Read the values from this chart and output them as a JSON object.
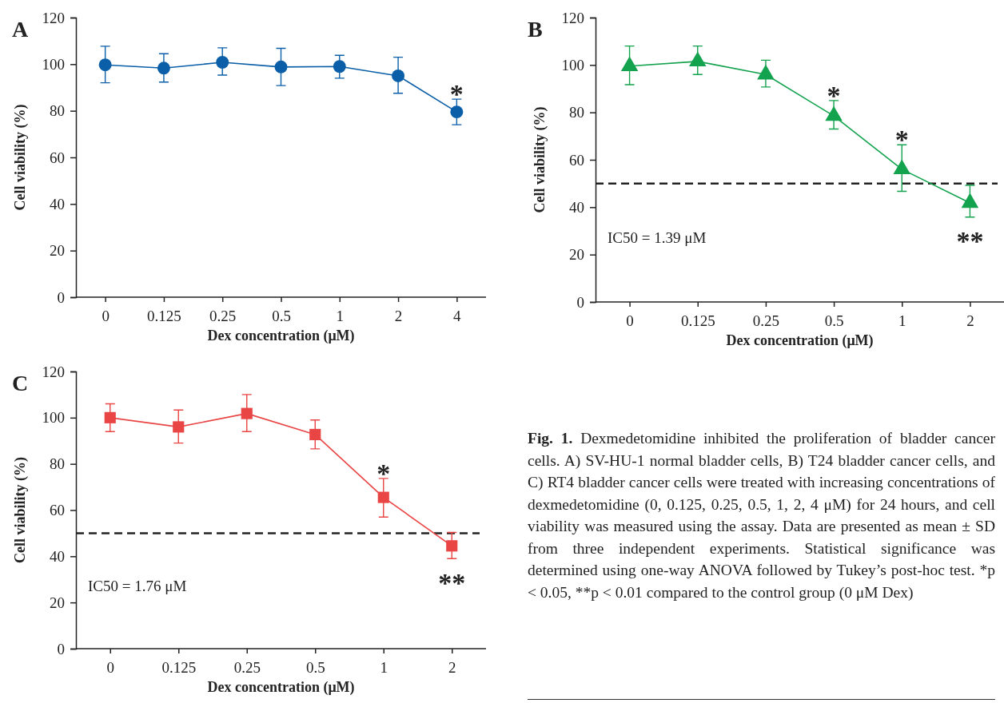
{
  "chart_data": [
    {
      "type": "line",
      "title": "A",
      "xlabel": "Dex concentration (μM)",
      "ylabel": "Cell viability (%)",
      "categories": [
        "0",
        "0.125",
        "0.25",
        "0.5",
        "1",
        "2",
        "4"
      ],
      "marker": "circle",
      "ylim": [
        0,
        120
      ],
      "yticks": [
        0,
        20,
        40,
        60,
        80,
        100,
        120
      ],
      "series": [
        {
          "color": "#0a5fa8",
          "values": [
            99.7,
            98.3,
            100.8,
            98.8,
            99,
            95,
            79.5
          ],
          "errors": [
            [
              92,
              107.7
            ],
            [
              92.3,
              104.5
            ],
            [
              95.3,
              107
            ],
            [
              90.8,
              106.8
            ],
            [
              94,
              103.8
            ],
            [
              87.5,
              103
            ],
            [
              74,
              85
            ]
          ]
        }
      ],
      "annotations": [
        {
          "text": "*",
          "x": "4",
          "y": 79.5
        }
      ]
    },
    {
      "type": "line",
      "title": "B",
      "xlabel": "Dex concentration (μM)",
      "ylabel": "Cell viability (%)",
      "categories": [
        "0",
        "0.125",
        "0.25",
        "0.5",
        "1",
        "2"
      ],
      "marker": "triangle",
      "ylim": [
        0,
        120
      ],
      "yticks": [
        0,
        20,
        40,
        60,
        80,
        100,
        120
      ],
      "series": [
        {
          "color": "#13a24e",
          "values": [
            99.5,
            101.5,
            96,
            78.5,
            56,
            41.8
          ],
          "errors": [
            [
              91.7,
              108
            ],
            [
              96,
              108
            ],
            [
              90.7,
              102
            ],
            [
              73,
              85
            ],
            [
              46.7,
              66.3
            ],
            [
              35.8,
              49.2
            ]
          ]
        }
      ],
      "ref_lines": [
        {
          "axis": "y",
          "value": 50,
          "color": "#222222",
          "line_style": "dashed"
        }
      ],
      "annotations": [
        "IC50 = 1.39 μM",
        {
          "text": "*",
          "x": "0.5",
          "y": 78.5
        },
        {
          "text": "*",
          "x": "1",
          "y": 56
        },
        {
          "text": "**",
          "x": "2",
          "y": 41.8
        }
      ]
    },
    {
      "type": "line",
      "title": "C",
      "xlabel": "Dex concentration (μM)",
      "ylabel": "Cell viability (%)",
      "categories": [
        "0",
        "0.125",
        "0.25",
        "0.5",
        "1",
        "2"
      ],
      "marker": "square",
      "ylim": [
        0,
        120
      ],
      "yticks": [
        0,
        20,
        40,
        60,
        80,
        100,
        120
      ],
      "series": [
        {
          "color": "#ea4545",
          "values": [
            100,
            96,
            101.8,
            92.7,
            65.5,
            44.5
          ],
          "errors": [
            [
              94,
              106
            ],
            [
              89,
              103.3
            ],
            [
              94,
              110
            ],
            [
              86.5,
              99
            ],
            [
              57,
              73.7
            ],
            [
              39,
              50.3
            ]
          ]
        }
      ],
      "ref_lines": [
        {
          "axis": "y",
          "value": 50,
          "color": "#222222",
          "line_style": "dashed"
        }
      ],
      "annotations": [
        "IC50 = 1.76 μM",
        {
          "text": "*",
          "x": "1",
          "y": 65.5
        },
        {
          "text": "**",
          "x": "2",
          "y": 44.5
        }
      ]
    },
    {
      "type": "other",
      "title": "Fig. 1.",
      "annotations": [
        "Dexmedetomidine inhibited the proliferation of bladder cancer cells. A) SV-HU-1 normal bladder cells, B) T24 bladder cancer cells, and C) RT4 bladder cancer cells were treated with increasing concentrations of dexmedetomidine (0, 0.125, 0.25, 0.5, 1, 2, 4 μM) for 24 hours, and cell viability was measured using the assay. Data are presented as mean ± SD from three independent experiments. Statistical significance was determined using one-way ANOVA followed by Tukey’s post-hoc test. *p < 0.05, **p < 0.01 compared to the control group (0 μM Dex)"
      ]
    }
  ]
}
